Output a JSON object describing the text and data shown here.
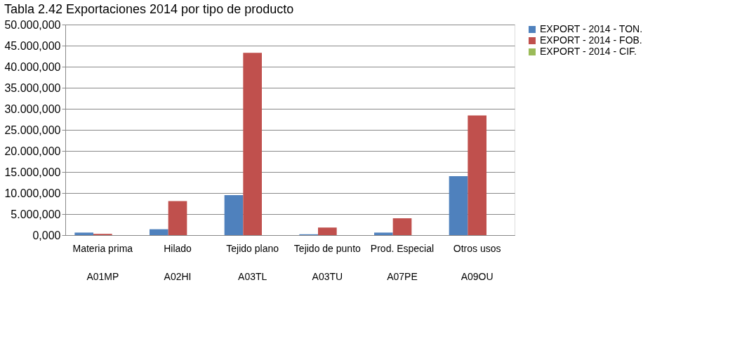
{
  "chart_data": {
    "type": "bar",
    "title": "Tabla 2.42 Exportaciones 2014 por tipo de producto",
    "categories": [
      "Materia prima\nA01MP",
      "Hilado\nA02HI",
      "Tejido plano\nA03TL",
      "Tejido de punto\nA03TU",
      "Prod. Especial\nA07PE",
      "Otros usos\nA09OU"
    ],
    "series": [
      {
        "name": "EXPORT - 2014 - TON.",
        "color": "#4f81bd",
        "values": [
          600,
          1400,
          9500,
          200,
          600,
          14000
        ]
      },
      {
        "name": "EXPORT - 2014 - FOB.",
        "color": "#c0504d",
        "values": [
          300,
          8100,
          43300,
          1800,
          4000,
          28400
        ]
      },
      {
        "name": "EXPORT - 2014 - CIF.",
        "color": "#9bbb59",
        "values": [
          0,
          0,
          0,
          0,
          0,
          0
        ]
      }
    ],
    "ylim": [
      0,
      50000
    ],
    "yticks": [
      {
        "value": 0,
        "label": "0,000"
      },
      {
        "value": 5000,
        "label": "5.000,000"
      },
      {
        "value": 10000,
        "label": "10.000,000"
      },
      {
        "value": 15000,
        "label": "15.000,000"
      },
      {
        "value": 20000,
        "label": "20.000,000"
      },
      {
        "value": 25000,
        "label": "25.000,000"
      },
      {
        "value": 30000,
        "label": "30.000,000"
      },
      {
        "value": 35000,
        "label": "35.000,000"
      },
      {
        "value": 40000,
        "label": "40.000,000"
      },
      {
        "value": 45000,
        "label": "45.000,000"
      },
      {
        "value": 50000,
        "label": "50.000,000"
      }
    ],
    "grid": "y",
    "legend": "right"
  }
}
